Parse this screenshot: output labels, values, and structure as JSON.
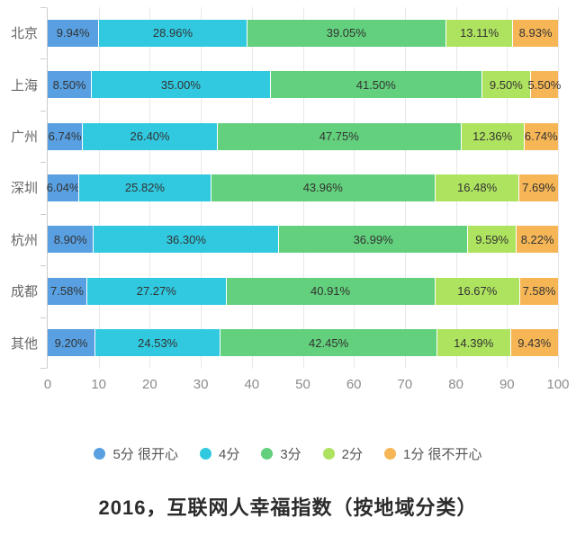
{
  "title": "2016，互联网人幸福指数（按地域分类）",
  "chart_data": {
    "type": "bar",
    "stacked": true,
    "orientation": "horizontal",
    "title": "2016，互联网人幸福指数（按地域分类）",
    "categories": [
      "北京",
      "上海",
      "广州",
      "深圳",
      "杭州",
      "成都",
      "其他"
    ],
    "series": [
      {
        "name": "5分 很开心",
        "color": "#58A0E2",
        "values": [
          9.94,
          8.5,
          6.74,
          6.04,
          8.9,
          7.58,
          9.2
        ],
        "labels": [
          "9.94%",
          "8.50%",
          "6.74%",
          "6.04%",
          "8.90%",
          "7.58%",
          "9.20%"
        ]
      },
      {
        "name": "4分",
        "color": "#30C9E0",
        "values": [
          28.96,
          35.0,
          26.4,
          25.82,
          36.3,
          27.27,
          24.53
        ],
        "labels": [
          "28.96%",
          "35.00%",
          "26.40%",
          "25.82%",
          "36.30%",
          "27.27%",
          "24.53%"
        ]
      },
      {
        "name": "3分",
        "color": "#62D07C",
        "values": [
          39.05,
          41.5,
          47.75,
          43.96,
          36.99,
          40.91,
          42.45
        ],
        "labels": [
          "39.05%",
          "41.50%",
          "47.75%",
          "43.96%",
          "36.99%",
          "40.91%",
          "42.45%"
        ]
      },
      {
        "name": "2分",
        "color": "#AEE35F",
        "values": [
          13.11,
          9.5,
          12.36,
          16.48,
          9.59,
          16.67,
          14.39
        ],
        "labels": [
          "13.11%",
          "9.50%",
          "12.36%",
          "16.48%",
          "9.59%",
          "16.67%",
          "14.39%"
        ]
      },
      {
        "name": "1分 很不开心",
        "color": "#F6B656",
        "values": [
          8.93,
          5.5,
          6.74,
          7.69,
          8.22,
          7.58,
          9.43
        ],
        "labels": [
          "8.93%",
          "5.50%",
          "6.74%",
          "7.69%",
          "8.22%",
          "7.58%",
          "9.43%"
        ]
      }
    ],
    "xlabel": "",
    "ylabel": "",
    "xlim": [
      0,
      100
    ],
    "x_ticks": [
      "0",
      "10",
      "20",
      "30",
      "40",
      "50",
      "60",
      "70",
      "80",
      "90",
      "100"
    ],
    "grid": true,
    "legend_position": "bottom",
    "colors": {
      "grid_line": "#e8e8e8",
      "axis_line": "#cccccc",
      "tick_label": "#8c8c8c",
      "category_label": "#666666",
      "value_label": "#333333",
      "title": "#2b2b2b",
      "background": "#ffffff"
    }
  }
}
